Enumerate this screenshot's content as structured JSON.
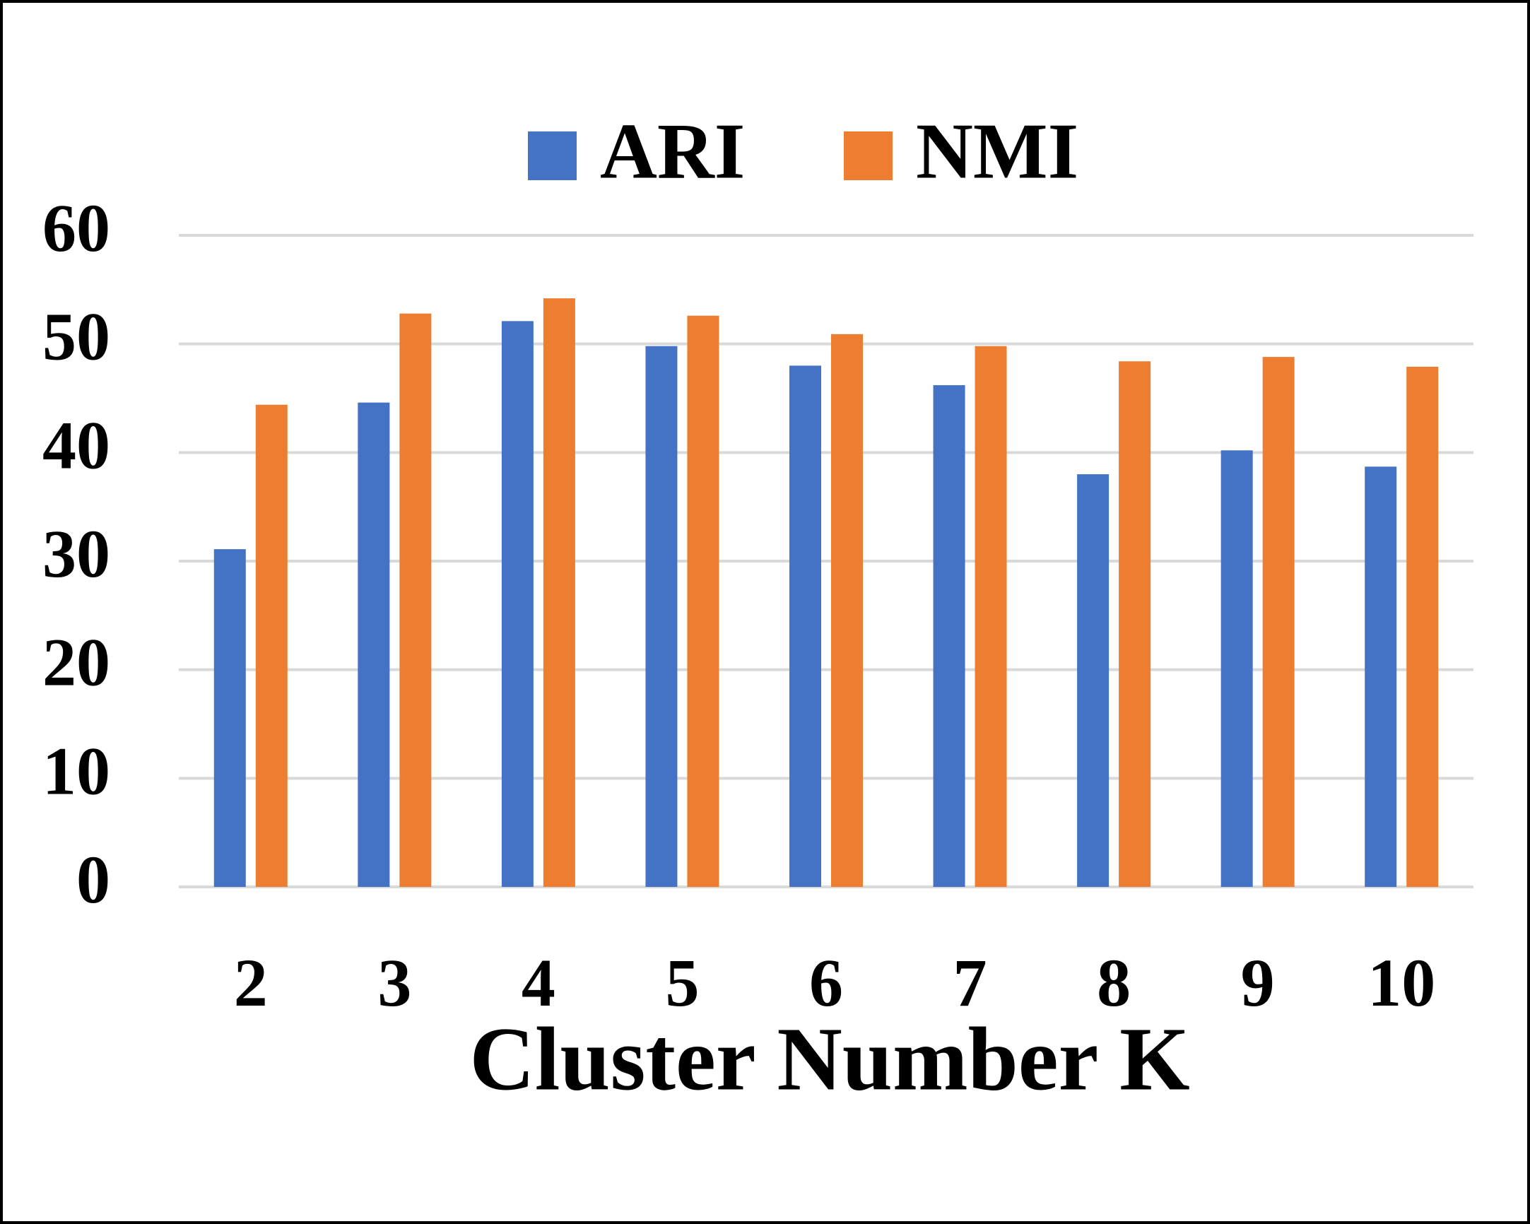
{
  "chart_data": {
    "type": "bar",
    "x_label": "Cluster Number K",
    "categories": [
      "2",
      "3",
      "4",
      "5",
      "6",
      "7",
      "8",
      "9",
      "10"
    ],
    "series": [
      {
        "name": "ARI",
        "color": "#4472c4",
        "values": [
          31.1,
          44.6,
          52.1,
          49.8,
          48.0,
          46.2,
          38.0,
          40.2,
          38.7
        ]
      },
      {
        "name": "NMI",
        "color": "#ed7d31",
        "values": [
          44.4,
          52.8,
          54.2,
          52.6,
          50.9,
          49.8,
          48.4,
          48.8,
          47.9
        ]
      }
    ],
    "ylim": [
      0,
      60
    ],
    "yticks": [
      0,
      10,
      20,
      30,
      40,
      50,
      60
    ],
    "grid": true,
    "legend": "top"
  }
}
